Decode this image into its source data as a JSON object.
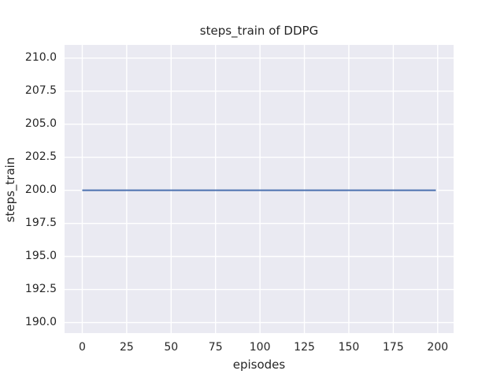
{
  "chart_data": {
    "type": "line",
    "title": "steps_train of DDPG",
    "xlabel": "episodes",
    "ylabel": "steps_train",
    "xlim": [
      -9.95,
      208.95
    ],
    "ylim": [
      189.2,
      211.0
    ],
    "xticks": [
      0,
      25,
      50,
      75,
      100,
      125,
      150,
      175,
      200
    ],
    "xtick_labels": [
      "0",
      "25",
      "50",
      "75",
      "100",
      "125",
      "150",
      "175",
      "200"
    ],
    "yticks": [
      190.0,
      192.5,
      195.0,
      197.5,
      200.0,
      202.5,
      205.0,
      207.5,
      210.0
    ],
    "ytick_labels": [
      "190.0",
      "192.5",
      "195.0",
      "197.5",
      "200.0",
      "202.5",
      "205.0",
      "207.5",
      "210.0"
    ],
    "grid": true,
    "legend": false,
    "series": [
      {
        "name": "steps_train",
        "x": [
          0,
          199
        ],
        "y": [
          200,
          200
        ],
        "color": "#4C72B0",
        "linewidth": 2
      }
    ],
    "style": {
      "figure_background": "#FFFFFF",
      "axes_background": "#EAEAF2",
      "grid_color": "#FFFFFF",
      "text_color": "#262626"
    }
  }
}
